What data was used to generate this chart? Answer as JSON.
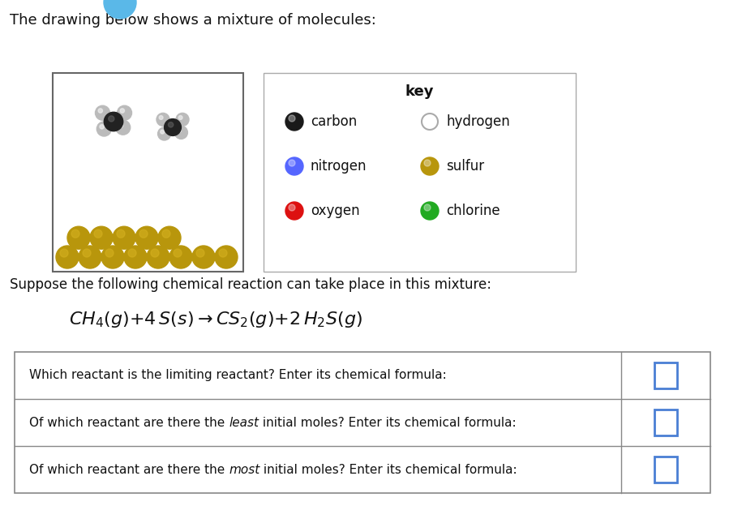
{
  "title_text": "The drawing below shows a mixture of molecules:",
  "key_title": "key",
  "key_items": [
    {
      "label": "carbon",
      "color": "#1a1a1a",
      "hollow": false
    },
    {
      "label": "hydrogen",
      "color": "#c8c8c8",
      "hollow": true
    },
    {
      "label": "nitrogen",
      "color": "#5566ff",
      "hollow": false
    },
    {
      "label": "sulfur",
      "color": "#b8960c",
      "hollow": false
    },
    {
      "label": "oxygen",
      "color": "#dd1111",
      "hollow": false
    },
    {
      "label": "chlorine",
      "color": "#22aa22",
      "hollow": false
    }
  ],
  "bg_color": "#ffffff",
  "sulfur_color": "#b8960c",
  "sulfur_highlight": "#d4b020",
  "carbon_color": "#333333",
  "hydrogen_color": "#bbbbbb",
  "input_box_color": "#4a7fd4",
  "table_border_color": "#888888",
  "question1": "Of which reactant are there the ",
  "question1_italic": "most",
  "question1_end": " initial moles? Enter its chemical formula:",
  "question2": "Of which reactant are there the ",
  "question2_italic": "least",
  "question2_end": " initial moles? Enter its chemical formula:",
  "question3": "Which reactant is the limiting reactant? Enter its chemical formula:"
}
